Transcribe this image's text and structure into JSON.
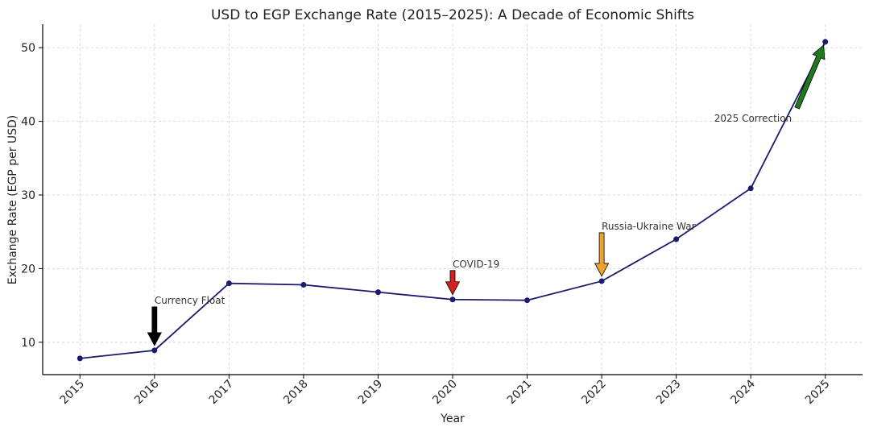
{
  "chart_data": {
    "type": "line",
    "title": "USD to EGP Exchange Rate (2015–2025): A Decade of Economic Shifts",
    "xlabel": "Year",
    "ylabel": "Exchange Rate (EGP per USD)",
    "x": [
      2015,
      2016,
      2017,
      2018,
      2019,
      2020,
      2021,
      2022,
      2023,
      2024,
      2025
    ],
    "series": [
      {
        "values": [
          7.8,
          8.9,
          18.0,
          17.8,
          16.8,
          15.8,
          15.7,
          18.3,
          24.0,
          30.9,
          50.8
        ],
        "color": "#1b1b6b"
      }
    ],
    "xlim": [
      2014.5,
      2025.5
    ],
    "ylim": [
      5.6,
      53.2
    ],
    "yticks": [
      10,
      20,
      30,
      40,
      50
    ],
    "grid": true,
    "annotations": [
      {
        "text": "Currency Float",
        "year": 2016,
        "value": 8.9,
        "arrow_color": "#000000",
        "direction": "down"
      },
      {
        "text": "COVID-19",
        "year": 2020,
        "value": 15.8,
        "arrow_color": "#d61f1f",
        "direction": "down"
      },
      {
        "text": "Russia-Ukraine War",
        "year": 2022,
        "value": 18.3,
        "arrow_color": "#f0a030",
        "direction": "down"
      },
      {
        "text": "2025 Correction",
        "year": 2025,
        "value": 50.8,
        "arrow_color": "#1f7a1f",
        "direction": "up-right"
      }
    ]
  }
}
